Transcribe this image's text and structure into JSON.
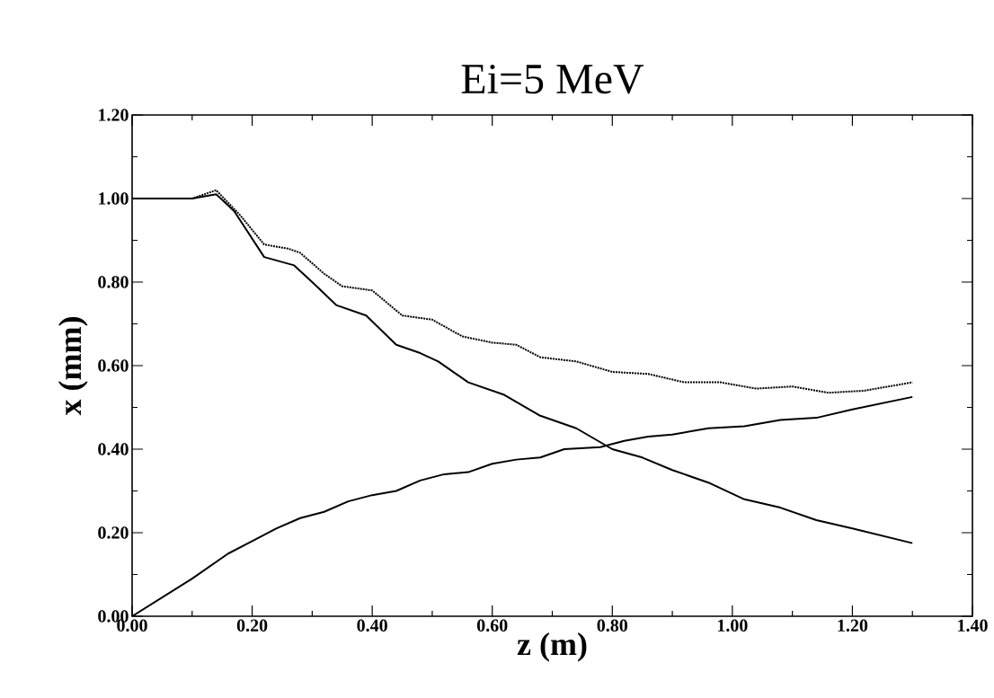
{
  "chart_data": {
    "type": "line",
    "title": "Ei=5 MeV",
    "xlabel": "z (m)",
    "ylabel": "x (mm)",
    "xlim": [
      0,
      1.4
    ],
    "ylim": [
      0,
      1.2
    ],
    "xticks": [
      {
        "value": 0,
        "label": "0.00"
      },
      {
        "value": 0.2,
        "label": "0.20"
      },
      {
        "value": 0.4,
        "label": "0.40"
      },
      {
        "value": 0.6,
        "label": "0.60"
      },
      {
        "value": 0.8,
        "label": "0.80"
      },
      {
        "value": 1.0,
        "label": "1.00"
      },
      {
        "value": 1.2,
        "label": "1.20"
      },
      {
        "value": 1.4,
        "label": "1.40"
      }
    ],
    "yticks": [
      {
        "value": 0,
        "label": "0.00"
      },
      {
        "value": 0.2,
        "label": "0.20"
      },
      {
        "value": 0.4,
        "label": "0.40"
      },
      {
        "value": 0.6,
        "label": "0.60"
      },
      {
        "value": 0.8,
        "label": "0.80"
      },
      {
        "value": 1.0,
        "label": "1.00"
      },
      {
        "value": 1.2,
        "label": "1.20"
      }
    ],
    "series": [
      {
        "color": "#000000",
        "line_style": "dotted",
        "x": [
          0,
          0.1,
          0.14,
          0.18,
          0.22,
          0.26,
          0.28,
          0.32,
          0.35,
          0.4,
          0.45,
          0.5,
          0.55,
          0.6,
          0.64,
          0.68,
          0.74,
          0.8,
          0.86,
          0.92,
          0.98,
          1.04,
          1.1,
          1.16,
          1.22,
          1.3
        ],
        "values": [
          1.0,
          1.0,
          1.02,
          0.96,
          0.89,
          0.88,
          0.87,
          0.82,
          0.79,
          0.78,
          0.72,
          0.71,
          0.67,
          0.655,
          0.65,
          0.62,
          0.61,
          0.585,
          0.58,
          0.56,
          0.56,
          0.545,
          0.55,
          0.535,
          0.54,
          0.56
        ]
      },
      {
        "color": "#000000",
        "line_style": "solid",
        "x": [
          0,
          0.1,
          0.14,
          0.17,
          0.22,
          0.27,
          0.3,
          0.34,
          0.39,
          0.44,
          0.48,
          0.51,
          0.56,
          0.62,
          0.68,
          0.74,
          0.8,
          0.85,
          0.9,
          0.96,
          1.02,
          1.08,
          1.14,
          1.2,
          1.3
        ],
        "values": [
          1.0,
          1.0,
          1.01,
          0.97,
          0.86,
          0.84,
          0.8,
          0.745,
          0.72,
          0.65,
          0.63,
          0.61,
          0.56,
          0.53,
          0.48,
          0.45,
          0.4,
          0.38,
          0.35,
          0.32,
          0.28,
          0.26,
          0.23,
          0.21,
          0.175
        ]
      },
      {
        "color": "#000000",
        "line_style": "solid",
        "x": [
          0,
          0.1,
          0.16,
          0.2,
          0.24,
          0.28,
          0.32,
          0.36,
          0.4,
          0.44,
          0.48,
          0.52,
          0.56,
          0.6,
          0.64,
          0.68,
          0.72,
          0.78,
          0.82,
          0.86,
          0.9,
          0.96,
          1.02,
          1.08,
          1.14,
          1.2,
          1.3
        ],
        "values": [
          0,
          0.09,
          0.15,
          0.18,
          0.21,
          0.235,
          0.25,
          0.275,
          0.29,
          0.3,
          0.325,
          0.34,
          0.345,
          0.365,
          0.375,
          0.38,
          0.4,
          0.405,
          0.42,
          0.43,
          0.435,
          0.45,
          0.455,
          0.47,
          0.475,
          0.495,
          0.525
        ]
      }
    ]
  }
}
